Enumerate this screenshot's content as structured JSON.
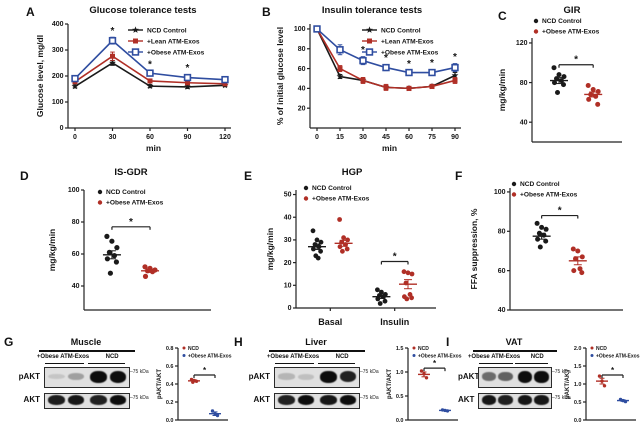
{
  "colors": {
    "black": "#1a1a1a",
    "red": "#b02f26",
    "blue": "#2f4da0"
  },
  "chart_data": {
    "A": {
      "letter": "A",
      "title": "Glucose tolerance tests",
      "type": "line",
      "xlabel": "min",
      "ylabel": "Glucose level, mg/dl",
      "x": [
        0,
        30,
        60,
        90,
        120
      ],
      "ylim": [
        0,
        400
      ],
      "yticks": [
        0,
        100,
        200,
        300,
        400
      ],
      "series": [
        {
          "name": "NCD Control",
          "color": "black",
          "marker": "star",
          "values": [
            160,
            250,
            161,
            158,
            164
          ],
          "err": [
            6,
            9,
            6,
            6,
            5
          ]
        },
        {
          "name": "+Lean ATM-Exos",
          "color": "red",
          "marker": "square",
          "values": [
            178,
            276,
            181,
            174,
            170
          ],
          "err": [
            6,
            16,
            7,
            6,
            5
          ]
        },
        {
          "name": "+Obese ATM-Exos",
          "color": "blue",
          "marker": "open-square",
          "values": [
            190,
            336,
            211,
            194,
            186
          ],
          "err": [
            7,
            13,
            9,
            11,
            6
          ]
        }
      ],
      "asterisks": [
        30,
        60,
        90
      ]
    },
    "B": {
      "letter": "B",
      "title": "Insulin tolerance tests",
      "type": "line",
      "xlabel": "min",
      "ylabel": "% of initial glucose level",
      "x": [
        0,
        15,
        30,
        45,
        60,
        75,
        90
      ],
      "ylim": [
        0,
        105
      ],
      "yticks": [
        20,
        40,
        60,
        80,
        100
      ],
      "series": [
        {
          "name": "NCD Control",
          "color": "black",
          "marker": "star",
          "values": [
            100,
            52,
            48,
            41,
            40,
            42,
            53
          ],
          "err": [
            0,
            2,
            2,
            2,
            1.5,
            1.5,
            3
          ]
        },
        {
          "name": "+Lean ATM-Exos",
          "color": "red",
          "marker": "square",
          "values": [
            100,
            60,
            48,
            41,
            40,
            42,
            48
          ],
          "err": [
            0,
            3,
            3,
            3,
            2,
            2,
            3
          ]
        },
        {
          "name": "+Obese ATM-Exos",
          "color": "blue",
          "marker": "open-square",
          "values": [
            100,
            79,
            68,
            61,
            56,
            56,
            61
          ],
          "err": [
            0,
            5,
            4,
            3,
            2,
            3,
            4
          ]
        }
      ],
      "asterisks": [
        30,
        45,
        60,
        75,
        90
      ]
    },
    "C": {
      "letter": "C",
      "title": "GIR",
      "type": "scatter",
      "ylabel": "mg/kg/min",
      "ylim": [
        20,
        125
      ],
      "yticks": [
        40,
        80,
        120
      ],
      "cols": [
        {
          "name": "NCD Control",
          "color": "black",
          "x": 0.3,
          "values": [
            95,
            88,
            86,
            84,
            82,
            80,
            78,
            70
          ],
          "mean": 82,
          "sem": 3
        },
        {
          "name": "+Obese ATM-Exos",
          "color": "red",
          "x": 0.68,
          "values": [
            77,
            73,
            71,
            68,
            66,
            63,
            58
          ],
          "mean": 68,
          "sem": 2.5
        }
      ],
      "sig": {
        "a": 0,
        "b": 1,
        "y": 98,
        "label": "*"
      },
      "legend": [
        {
          "name": "NCD Control",
          "color": "black"
        },
        {
          "name": "+Obese ATM-Exos",
          "color": "red"
        }
      ]
    },
    "D": {
      "letter": "D",
      "title": "IS-GDR",
      "type": "scatter",
      "ylabel": "mg/kg/min",
      "ylim": [
        25,
        100
      ],
      "yticks": [
        40,
        60,
        80,
        100
      ],
      "cols": [
        {
          "name": "NCD Control",
          "color": "black",
          "x": 0.22,
          "values": [
            71,
            68,
            64,
            61,
            59,
            57,
            55,
            48
          ],
          "mean": 59.5,
          "sem": 2.5
        },
        {
          "name": "+Obese ATM-Exos",
          "color": "red",
          "x": 0.52,
          "values": [
            52,
            51,
            50,
            49.5,
            49,
            46
          ],
          "mean": 49.5,
          "sem": 1
        }
      ],
      "sig": {
        "a": 0,
        "b": 1,
        "y": 77,
        "label": "*"
      },
      "legend": [
        {
          "name": "NCD Control",
          "color": "black"
        },
        {
          "name": "+Obese ATM-Exos",
          "color": "red"
        }
      ]
    },
    "E": {
      "letter": "E",
      "title": "HGP",
      "type": "scatter",
      "ylabel": "mg/kg/min",
      "ylim": [
        0,
        52
      ],
      "yticks": [
        0,
        10,
        20,
        30,
        40,
        50
      ],
      "cols": [
        {
          "name": "NCD Control (Basal)",
          "color": "black",
          "x": 0.15,
          "values": [
            34,
            30,
            29,
            28,
            27,
            26,
            25,
            23,
            22
          ],
          "mean": 27,
          "sem": 1.2
        },
        {
          "name": "+Obese ATM-Exos (Basal)",
          "color": "red",
          "x": 0.34,
          "values": [
            39,
            31,
            30,
            29,
            28,
            27,
            26,
            25
          ],
          "mean": 28.5,
          "sem": 1.3
        },
        {
          "name": "NCD Control (Insulin)",
          "color": "black",
          "x": 0.61,
          "values": [
            8,
            7,
            6,
            5.5,
            5,
            4,
            3,
            2
          ],
          "mean": 5,
          "sem": 0.8
        },
        {
          "name": "+Obese ATM-Exos (Insulin)",
          "color": "red",
          "x": 0.8,
          "values": [
            16,
            15.5,
            15,
            11,
            6,
            5,
            4.5,
            4
          ],
          "mean": 10.5,
          "sem": 2
        }
      ],
      "cats": [
        {
          "label": "Basal",
          "x": 0.245
        },
        {
          "label": "Insulin",
          "x": 0.705
        }
      ],
      "sig": {
        "a": 2,
        "b": 3,
        "y": 20.5,
        "label": "*"
      },
      "legend": [
        {
          "name": "NCD Control",
          "color": "black"
        },
        {
          "name": "+Obese ATM-Exos",
          "color": "red"
        }
      ]
    },
    "F": {
      "letter": "F",
      "type": "scatter",
      "ylabel": "FFA suppression, %",
      "ylim": [
        40,
        102
      ],
      "yticks": [
        40,
        60,
        80,
        100
      ],
      "cols": [
        {
          "name": "NCD Control",
          "color": "black",
          "x": 0.28,
          "values": [
            84,
            82,
            81,
            79,
            78,
            76,
            75,
            72
          ],
          "mean": 77.5,
          "sem": 1.5
        },
        {
          "name": "+Obese ATM-Exos",
          "color": "red",
          "x": 0.6,
          "values": [
            71,
            70,
            67,
            66,
            61,
            60,
            59
          ],
          "mean": 65,
          "sem": 2
        }
      ],
      "sig": {
        "a": 0,
        "b": 1,
        "y": 88,
        "label": "*"
      },
      "legend": [
        {
          "name": "NCD Control",
          "color": "black"
        },
        {
          "name": "+Obese ATM-Exos",
          "color": "red"
        }
      ]
    },
    "G": {
      "letter": "G",
      "blot": {
        "title": "Muscle",
        "col_labels": [
          "+Obese ATM-Exos",
          "NCD"
        ],
        "rows": [
          {
            "label": "pAKT",
            "marker": "75 kDa",
            "bands": [
              0.12,
              0.3,
              1,
              1
            ]
          },
          {
            "label": "AKT",
            "marker": "75 kDa",
            "bands": [
              0.92,
              0.95,
              0.9,
              1
            ]
          }
        ]
      },
      "plot": {
        "type": "scatter",
        "ylabel": "pAKT/AKT",
        "ylim": [
          0,
          0.8
        ],
        "yticks": [
          "0.0",
          "0.2",
          "0.4",
          "0.6",
          "0.8"
        ],
        "cols": [
          {
            "name": "NCD",
            "color": "red",
            "x": 0.32,
            "values": [
              0.45,
              0.44,
              0.43,
              0.42
            ],
            "mean": 0.435,
            "sem": 0.012
          },
          {
            "name": "+Obese ATM-Exos",
            "color": "blue",
            "x": 0.74,
            "values": [
              0.1,
              0.07,
              0.05
            ],
            "mean": 0.07,
            "sem": 0.02
          }
        ],
        "sig": {
          "a": 0,
          "b": 1,
          "y": 0.5,
          "label": "*"
        },
        "legend": [
          {
            "name": "NCD",
            "color": "red"
          },
          {
            "name": "+Obese ATM-Exos",
            "color": "blue"
          }
        ]
      }
    },
    "H": {
      "letter": "H",
      "blot": {
        "title": "Liver",
        "col_labels": [
          "+Obese ATM-Exos",
          "NCD"
        ],
        "rows": [
          {
            "label": "pAKT",
            "marker": "75 kDa",
            "bands": [
              0.2,
              0.15,
              1,
              0.9
            ]
          },
          {
            "label": "AKT",
            "marker": "75 kDa",
            "bands": [
              0.9,
              1,
              0.95,
              1
            ]
          }
        ]
      },
      "plot": {
        "type": "scatter",
        "ylabel": "pAKT/AKT",
        "ylim": [
          0,
          1.5
        ],
        "yticks": [
          "0.0",
          "0.5",
          "1.0",
          "1.5"
        ],
        "cols": [
          {
            "name": "NCD",
            "color": "red",
            "x": 0.32,
            "values": [
              1.02,
              0.96,
              0.88
            ],
            "mean": 0.95,
            "sem": 0.05
          },
          {
            "name": "+Obese ATM-Exos",
            "color": "blue",
            "x": 0.74,
            "values": [
              0.21,
              0.2,
              0.19
            ],
            "mean": 0.2,
            "sem": 0.01
          }
        ],
        "sig": {
          "a": 0,
          "b": 1,
          "y": 1.08,
          "label": "*"
        },
        "legend": [
          {
            "name": "NCD",
            "color": "red"
          },
          {
            "name": "+Obese ATM-Exos",
            "color": "blue"
          }
        ]
      }
    },
    "I": {
      "letter": "I",
      "blot": {
        "title": "VAT",
        "col_labels": [
          "+Obese ATM-Exos",
          "NCD"
        ],
        "rows": [
          {
            "label": "pAKT",
            "marker": "75 kDa",
            "bands": [
              0.55,
              0.6,
              1,
              1
            ]
          },
          {
            "label": "AKT",
            "marker": "75 kDa",
            "bands": [
              0.95,
              0.9,
              0.95,
              0.95
            ]
          }
        ]
      },
      "plot": {
        "type": "scatter",
        "ylabel": "pAKT/AKT",
        "ylim": [
          0,
          2
        ],
        "yticks": [
          "0.0",
          "0.5",
          "1.0",
          "1.5",
          "2.0"
        ],
        "cols": [
          {
            "name": "NCD",
            "color": "red",
            "x": 0.32,
            "values": [
              1.22,
              1.08,
              0.95
            ],
            "mean": 1.08,
            "sem": 0.08
          },
          {
            "name": "+Obese ATM-Exos",
            "color": "blue",
            "x": 0.74,
            "values": [
              0.57,
              0.54,
              0.51
            ],
            "mean": 0.54,
            "sem": 0.02
          }
        ],
        "sig": {
          "a": 0,
          "b": 1,
          "y": 1.25,
          "label": "*"
        },
        "legend": [
          {
            "name": "NCD",
            "color": "red"
          },
          {
            "name": "+Obese ATM-Exos",
            "color": "blue"
          }
        ]
      }
    }
  }
}
